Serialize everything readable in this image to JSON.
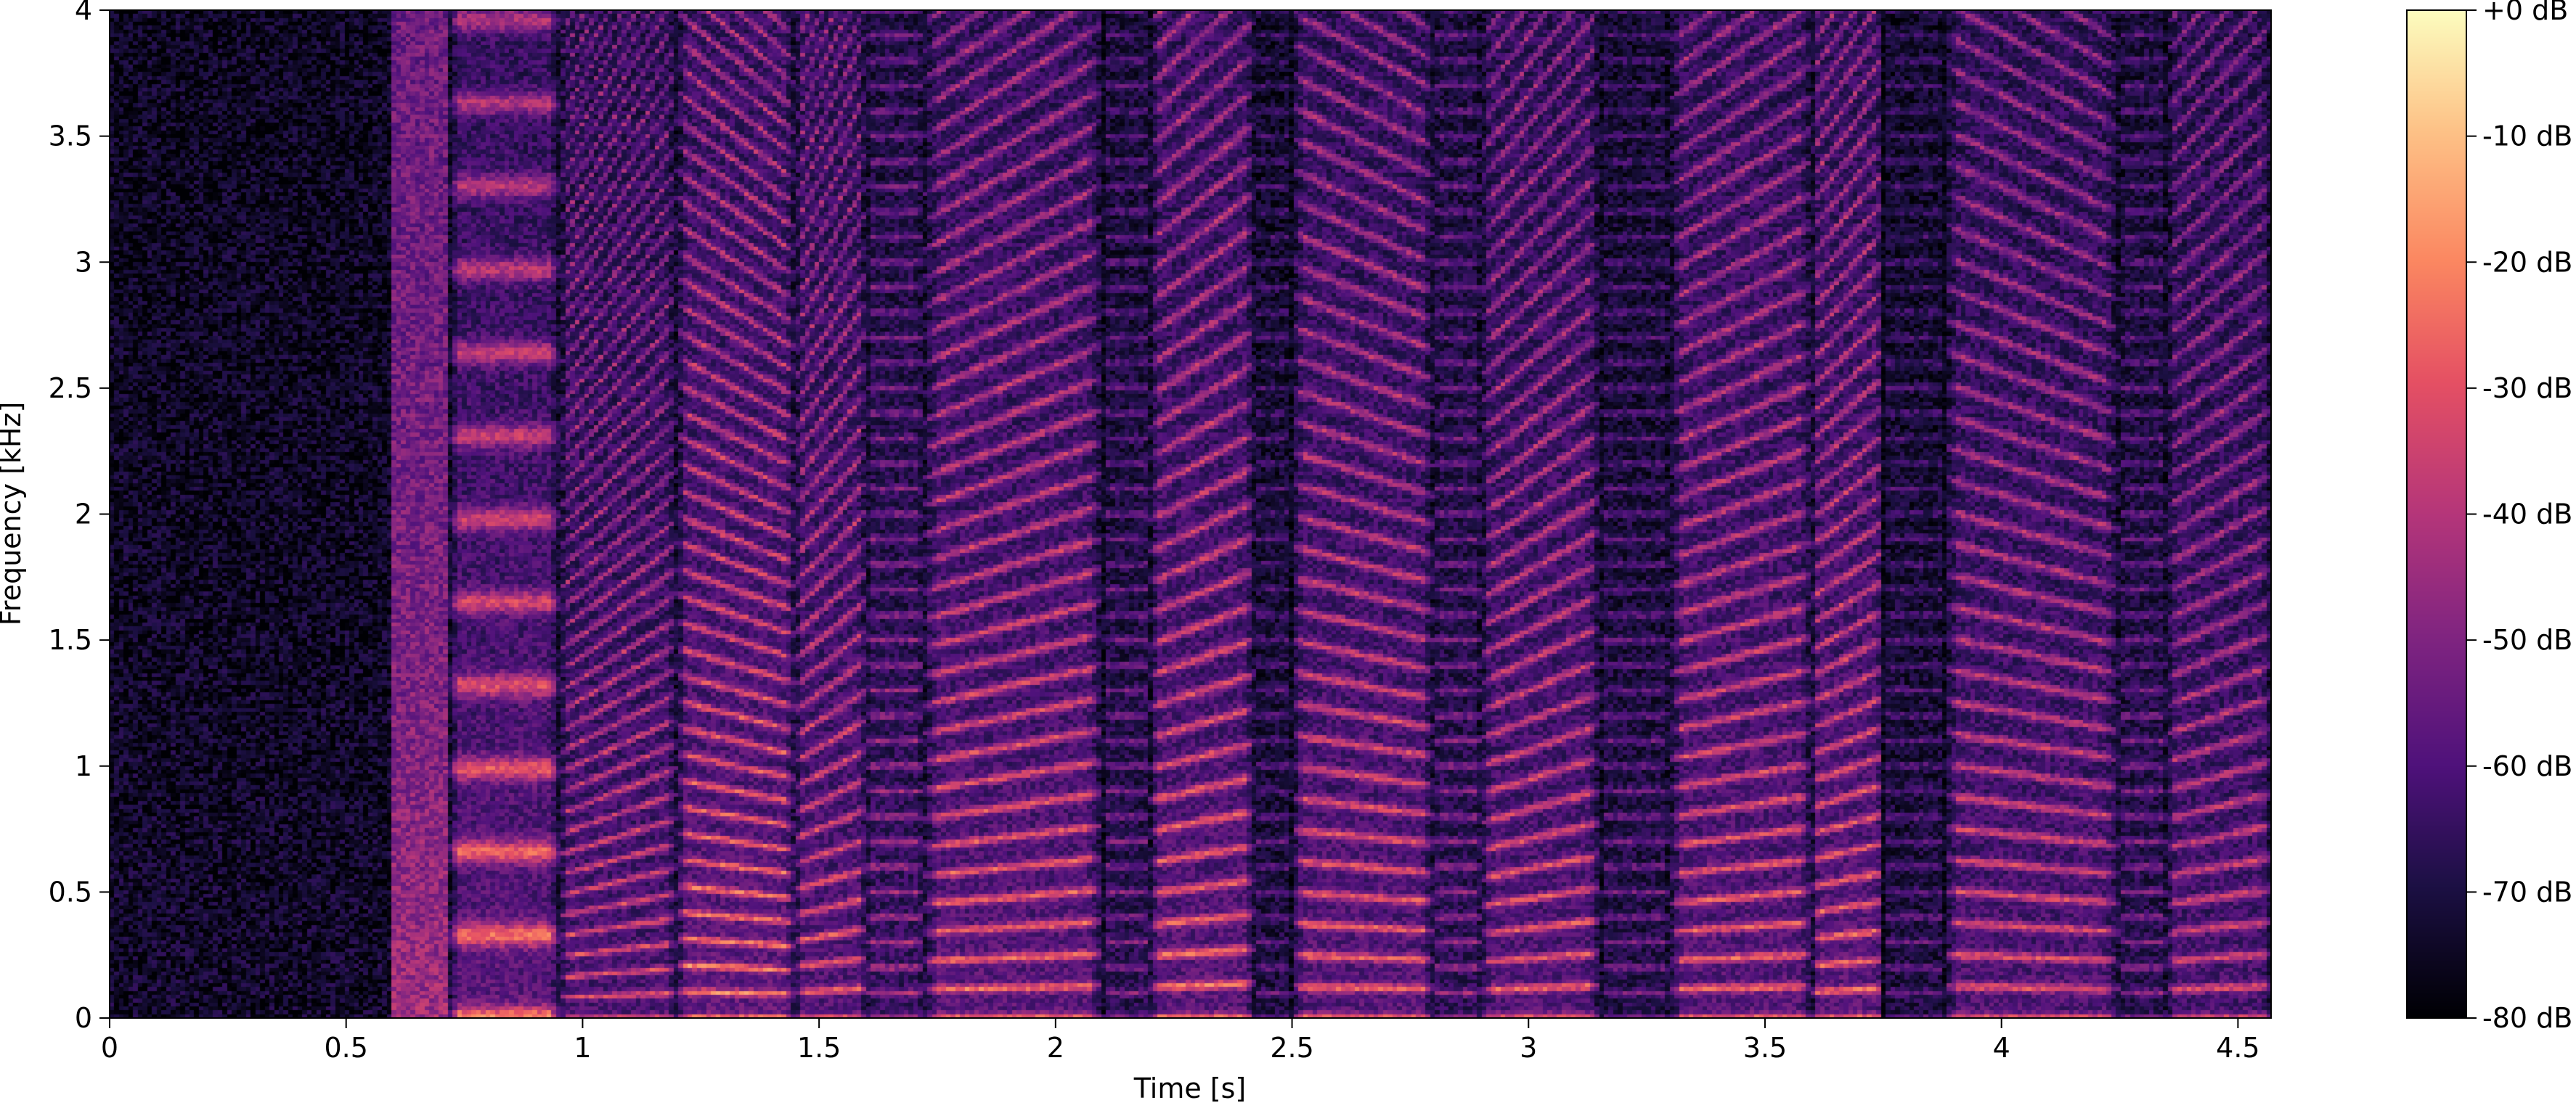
{
  "chart_data": [
    {
      "type": "heatmap",
      "xlabel": "Time [s]",
      "ylabel": "Frequency [kHz]",
      "xlim": [
        0,
        4.57
      ],
      "ylim": [
        0,
        4
      ],
      "x_ticks": [
        {
          "value": 0,
          "label": "0"
        },
        {
          "value": 0.5,
          "label": "0.5"
        },
        {
          "value": 1,
          "label": "1"
        },
        {
          "value": 1.5,
          "label": "1.5"
        },
        {
          "value": 2,
          "label": "2"
        },
        {
          "value": 2.5,
          "label": "2.5"
        },
        {
          "value": 3,
          "label": "3"
        },
        {
          "value": 3.5,
          "label": "3.5"
        },
        {
          "value": 4,
          "label": "4"
        },
        {
          "value": 4.5,
          "label": "4.5"
        }
      ],
      "y_ticks": [
        {
          "value": 0,
          "label": "0"
        },
        {
          "value": 0.5,
          "label": "0.5"
        },
        {
          "value": 1,
          "label": "1"
        },
        {
          "value": 1.5,
          "label": "1.5"
        },
        {
          "value": 2,
          "label": "2"
        },
        {
          "value": 2.5,
          "label": "2.5"
        },
        {
          "value": 3,
          "label": "3"
        },
        {
          "value": 3.5,
          "label": "3.5"
        },
        {
          "value": 4,
          "label": "4"
        }
      ],
      "colormap": "magma",
      "segments": [
        {
          "t0": 0.0,
          "t1": 0.6,
          "level": 0.08,
          "f0": 0,
          "slope": 0
        },
        {
          "t0": 0.6,
          "t1": 0.72,
          "level": 0.45,
          "f0": 0,
          "slope": 0
        },
        {
          "t0": 0.72,
          "t1": 0.95,
          "level": 0.82,
          "f0": 0.33,
          "slope": 0
        },
        {
          "t0": 0.95,
          "t1": 1.2,
          "level": 0.7,
          "f0": 0.09,
          "slope": 0.2
        },
        {
          "t0": 1.2,
          "t1": 1.45,
          "level": 0.85,
          "f0": 0.1,
          "slope": -0.1
        },
        {
          "t0": 1.45,
          "t1": 1.6,
          "level": 0.75,
          "f0": 0.11,
          "slope": 0.15
        },
        {
          "t0": 1.6,
          "t1": 1.72,
          "level": 0.55,
          "f0": 0.1,
          "slope": 0
        },
        {
          "t0": 1.72,
          "t1": 2.1,
          "level": 0.8,
          "f0": 0.12,
          "slope": 0.12
        },
        {
          "t0": 2.1,
          "t1": 2.2,
          "level": 0.45,
          "f0": 0.1,
          "slope": 0
        },
        {
          "t0": 2.2,
          "t1": 2.42,
          "level": 0.8,
          "f0": 0.13,
          "slope": 0.1
        },
        {
          "t0": 2.42,
          "t1": 2.5,
          "level": 0.35,
          "f0": 0.1,
          "slope": 0
        },
        {
          "t0": 2.5,
          "t1": 2.8,
          "level": 0.78,
          "f0": 0.12,
          "slope": -0.08
        },
        {
          "t0": 2.8,
          "t1": 2.9,
          "level": 0.5,
          "f0": 0.1,
          "slope": 0
        },
        {
          "t0": 2.9,
          "t1": 3.15,
          "level": 0.75,
          "f0": 0.12,
          "slope": 0.15
        },
        {
          "t0": 3.15,
          "t1": 3.3,
          "level": 0.4,
          "f0": 0.1,
          "slope": 0
        },
        {
          "t0": 3.3,
          "t1": 3.6,
          "level": 0.78,
          "f0": 0.12,
          "slope": 0.1
        },
        {
          "t0": 3.6,
          "t1": 3.75,
          "level": 0.8,
          "f0": 0.11,
          "slope": 0.1
        },
        {
          "t0": 3.75,
          "t1": 3.88,
          "level": 0.35,
          "f0": 0.1,
          "slope": 0
        },
        {
          "t0": 3.88,
          "t1": 4.25,
          "level": 0.72,
          "f0": 0.12,
          "slope": -0.1
        },
        {
          "t0": 4.25,
          "t1": 4.35,
          "level": 0.45,
          "f0": 0.1,
          "slope": 0
        },
        {
          "t0": 4.35,
          "t1": 4.57,
          "level": 0.68,
          "f0": 0.12,
          "slope": 0.12
        }
      ],
      "colorbar": {
        "range": [
          -80,
          0
        ],
        "ticks": [
          {
            "value": 0,
            "label": "+0 dB"
          },
          {
            "value": -10,
            "label": "-10 dB"
          },
          {
            "value": -20,
            "label": "-20 dB"
          },
          {
            "value": -30,
            "label": "-30 dB"
          },
          {
            "value": -40,
            "label": "-40 dB"
          },
          {
            "value": -50,
            "label": "-50 dB"
          },
          {
            "value": -60,
            "label": "-60 dB"
          },
          {
            "value": -70,
            "label": "-70 dB"
          },
          {
            "value": -80,
            "label": "-80 dB"
          }
        ]
      }
    }
  ]
}
